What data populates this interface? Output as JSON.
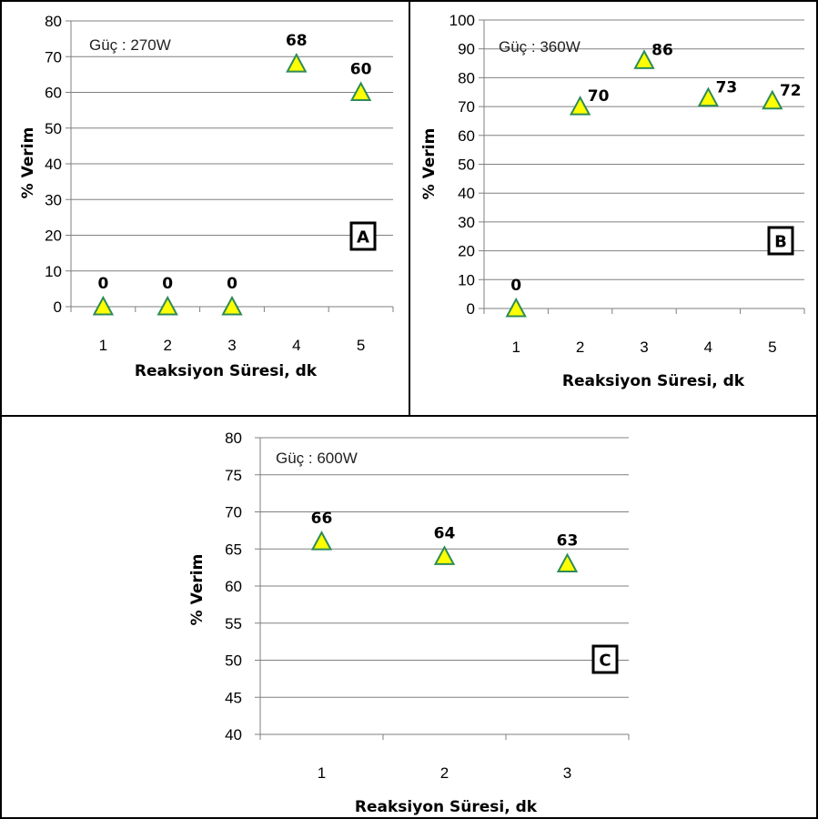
{
  "style": {
    "marker_fill": "#ffff00",
    "marker_stroke": "#2e8b57",
    "grid_color": "#808080",
    "axis_color": "#7f7f7f"
  },
  "chart_data": [
    {
      "panel_label": "A",
      "type": "scatter",
      "note": "Güç : 270W",
      "xlabel": "Reaksiyon Süresi, dk",
      "ylabel": "% Verim",
      "categories": [
        "1",
        "2",
        "3",
        "4",
        "5"
      ],
      "ylim": [
        0,
        80
      ],
      "ystep": 10,
      "grid": true,
      "points": [
        {
          "x": "1",
          "y": 0,
          "label": "0"
        },
        {
          "x": "2",
          "y": 0,
          "label": "0"
        },
        {
          "x": "3",
          "y": 0,
          "label": "0"
        },
        {
          "x": "4",
          "y": 68,
          "label": "68"
        },
        {
          "x": "5",
          "y": 60,
          "label": "60"
        }
      ]
    },
    {
      "panel_label": "B",
      "type": "scatter",
      "note": "Güç : 360W",
      "xlabel": "Reaksiyon Süresi, dk",
      "ylabel": "% Verim",
      "categories": [
        "1",
        "2",
        "3",
        "4",
        "5"
      ],
      "ylim": [
        0,
        100
      ],
      "ystep": 10,
      "grid": true,
      "points": [
        {
          "x": "1",
          "y": 0,
          "label": "0"
        },
        {
          "x": "2",
          "y": 70,
          "label": "70"
        },
        {
          "x": "3",
          "y": 86,
          "label": "86"
        },
        {
          "x": "4",
          "y": 73,
          "label": "73"
        },
        {
          "x": "5",
          "y": 72,
          "label": "72"
        }
      ]
    },
    {
      "panel_label": "C",
      "type": "scatter",
      "note": "Güç : 600W",
      "xlabel": "Reaksiyon Süresi, dk",
      "ylabel": "% Verim",
      "categories": [
        "1",
        "2",
        "3"
      ],
      "ylim": [
        40,
        80
      ],
      "ystep": 5,
      "grid": true,
      "points": [
        {
          "x": "1",
          "y": 66,
          "label": "66"
        },
        {
          "x": "2",
          "y": 64,
          "label": "64"
        },
        {
          "x": "3",
          "y": 63,
          "label": "63"
        }
      ]
    }
  ]
}
